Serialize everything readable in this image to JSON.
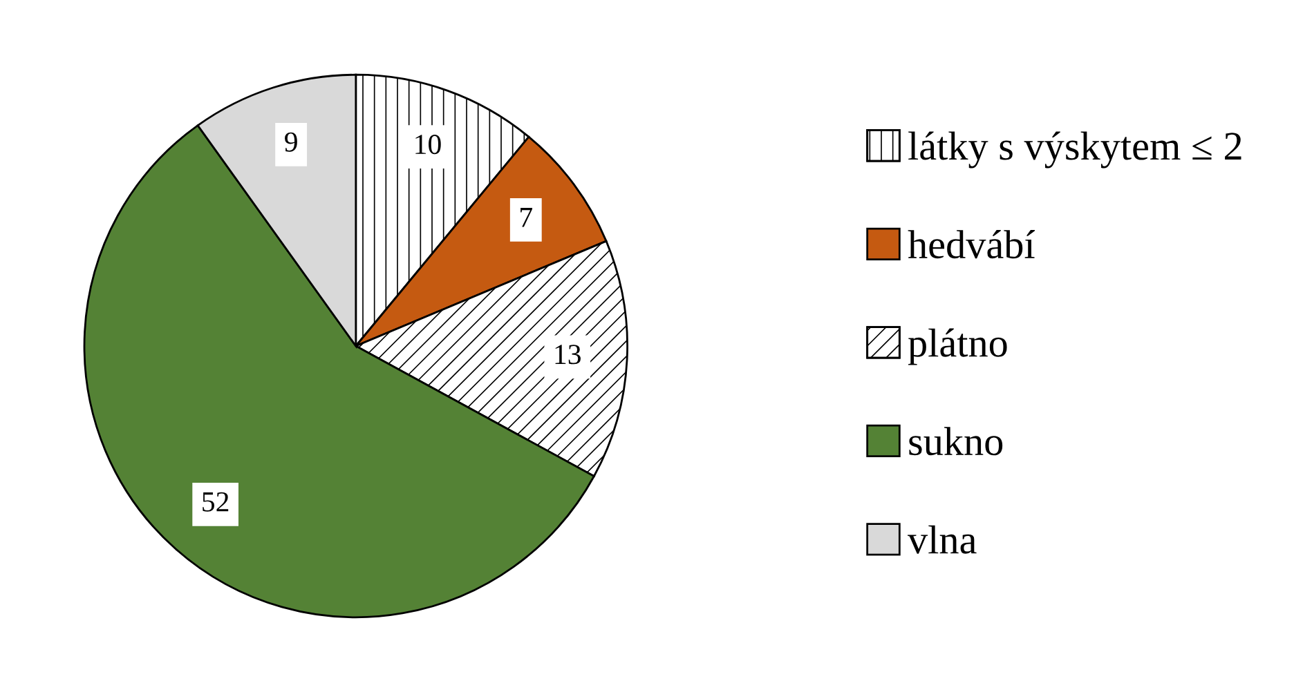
{
  "chart_data": {
    "type": "pie",
    "categories": [
      "látky s výskytem ≤ 2",
      "hedvábí",
      "plátno",
      "sukno",
      "vlna"
    ],
    "values": [
      10,
      7,
      13,
      52,
      9
    ],
    "colors": [
      "#ffffff",
      "#c55a11",
      "#ffffff",
      "#548235",
      "#d9d9d9"
    ],
    "data_labels": true,
    "legend": "right"
  }
}
